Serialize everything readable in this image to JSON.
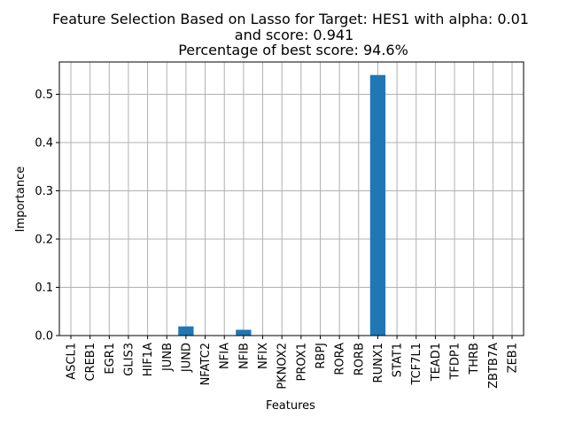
{
  "chart_data": {
    "type": "bar",
    "title_lines": [
      "Feature Selection Based on Lasso for Target: HES1 with alpha: 0.01",
      "and score: 0.941",
      "Percentage of best score: 94.6%"
    ],
    "xlabel": "Features",
    "ylabel": "Importance",
    "categories": [
      "ASCL1",
      "CREB1",
      "EGR1",
      "GLIS3",
      "HIF1A",
      "JUNB",
      "JUND",
      "NFATC2",
      "NFIA",
      "NFIB",
      "NFIX",
      "PKNOX2",
      "PROX1",
      "RBPJ",
      "RORA",
      "RORB",
      "RUNX1",
      "STAT1",
      "TCF7L1",
      "TEAD1",
      "TFDP1",
      "THRB",
      "ZBTB7A",
      "ZEB1"
    ],
    "values": [
      0,
      0,
      0,
      0,
      0,
      0,
      0.019,
      0,
      0,
      0.012,
      0,
      0,
      0,
      0,
      0,
      0,
      0.54,
      0,
      0,
      0,
      0,
      0,
      0,
      0
    ],
    "ylim": [
      0,
      0.567
    ],
    "yticks": [
      0.0,
      0.1,
      0.2,
      0.3,
      0.4,
      0.5
    ],
    "ytick_labels": [
      "0.0",
      "0.1",
      "0.2",
      "0.3",
      "0.4",
      "0.5"
    ],
    "grid": true,
    "bar_color": "#1f77b4",
    "grid_color": "#b0b0b0"
  }
}
